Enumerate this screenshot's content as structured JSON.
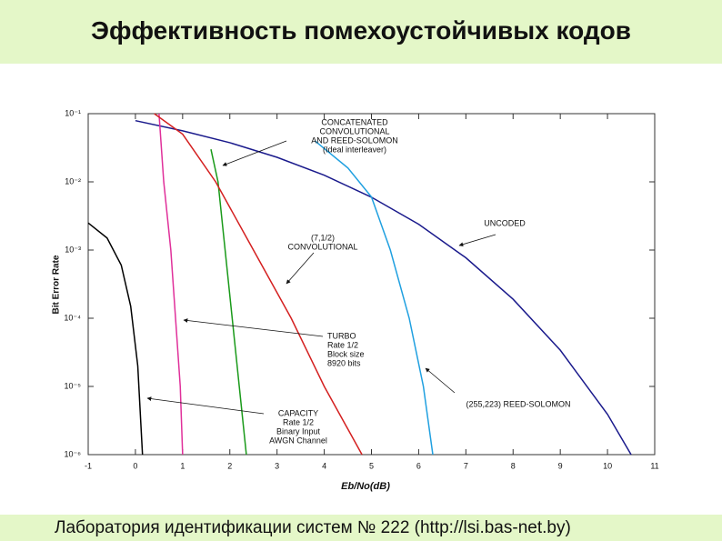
{
  "header": {
    "title": "Эффективность помехоустойчивых кодов"
  },
  "footer": {
    "text": "Лаборатория идентификации систем № 222 (http://lsi.bas-net.by)"
  },
  "chart_data": {
    "type": "line",
    "log_y": true,
    "x_label": "Eb/No(dB)",
    "y_label": "Bit Error Rate",
    "xlim": [
      -1,
      11
    ],
    "xticks": [
      -1,
      0,
      1,
      2,
      3,
      4,
      5,
      6,
      7,
      8,
      9,
      10,
      11
    ],
    "ylim": [
      1e-06,
      0.1
    ],
    "yticks": [
      {
        "value": 0.1,
        "label": "10⁻¹"
      },
      {
        "value": 0.01,
        "label": "10⁻²"
      },
      {
        "value": 0.001,
        "label": "10⁻³"
      },
      {
        "value": 0.0001,
        "label": "10⁻⁴"
      },
      {
        "value": 1e-05,
        "label": "10⁻⁵"
      },
      {
        "value": 1e-06,
        "label": "10⁻⁶"
      }
    ],
    "series": [
      {
        "color": "#1a1a8c",
        "x": [
          0,
          1,
          2,
          3,
          4,
          5,
          6,
          7,
          8,
          9,
          10,
          10.5
        ],
        "values": [
          0.079,
          0.056,
          0.0375,
          0.0229,
          0.0125,
          0.00595,
          0.00239,
          0.00077,
          0.00019,
          3.4e-05,
          3.9e-06,
          1e-06
        ]
      },
      {
        "color": "#000000",
        "x": [
          -1,
          -0.6,
          -0.3,
          -0.1,
          0.05,
          0.15
        ],
        "values": [
          0.0025,
          0.0015,
          0.0006,
          0.00015,
          2e-05,
          1e-06
        ]
      },
      {
        "color": "#e0309a",
        "x": [
          0.5,
          0.6,
          0.75,
          0.85,
          0.95,
          1.0
        ],
        "values": [
          0.1,
          0.01,
          0.001,
          0.0001,
          1e-05,
          1e-06
        ]
      },
      {
        "color": "#1a9a1a",
        "x": [
          1.6,
          1.75,
          1.9,
          2.05,
          2.2,
          2.35
        ],
        "values": [
          0.03,
          0.01,
          0.001,
          0.0001,
          1e-05,
          1e-06
        ]
      },
      {
        "color": "#d42020",
        "x": [
          0.4,
          1,
          1.7,
          2.5,
          3.3,
          4,
          4.8
        ],
        "values": [
          0.1,
          0.05,
          0.01,
          0.001,
          0.0001,
          1e-05,
          1e-06
        ]
      },
      {
        "color": "#20a0e0",
        "x": [
          3.8,
          4.5,
          5,
          5.4,
          5.8,
          6.1,
          6.3
        ],
        "values": [
          0.04,
          0.016,
          0.006,
          0.001,
          0.0001,
          1e-05,
          1e-06
        ]
      }
    ],
    "annotations": [
      {
        "lines": [
          "CONCATENATED",
          "CONVOLUTIONAL",
          "AND REED-SOLOMON",
          "(Ideal interleaver)"
        ]
      },
      {
        "lines": [
          "(7,1/2)",
          "CONVOLUTIONAL"
        ]
      },
      {
        "lines": [
          "UNCODED"
        ]
      },
      {
        "lines": [
          "TURBO",
          "Rate 1/2",
          "Block size",
          "8920 bits"
        ]
      },
      {
        "lines": [
          "(255,223) REED-SOLOMON"
        ]
      },
      {
        "lines": [
          "CAPACITY",
          "Rate 1/2",
          "Binary Input",
          "AWGN Channel"
        ]
      }
    ]
  }
}
